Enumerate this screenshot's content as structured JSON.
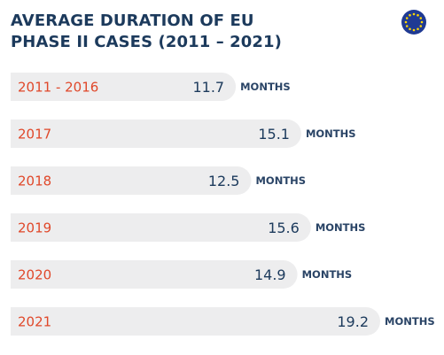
{
  "chart_data": {
    "type": "bar",
    "orientation": "horizontal",
    "title_lines": [
      "AVERAGE DURATION OF EU",
      "PHASE II CASES (2011 – 2021)"
    ],
    "categories": [
      "2011 - 2016",
      "2017",
      "2018",
      "2019",
      "2020",
      "2021"
    ],
    "values": [
      11.7,
      15.1,
      12.5,
      15.6,
      14.9,
      19.2
    ],
    "value_labels": [
      "11.7",
      "15.1",
      "12.5",
      "15.6",
      "14.9",
      "19.2"
    ],
    "unit": "MONTHS",
    "xlim": [
      0,
      19.2
    ],
    "grid": false,
    "legend": "none"
  },
  "icons": {
    "logo": "eu-flag-icon"
  },
  "colors": {
    "title": "#1c3a5c",
    "category_label": "#e0482a",
    "value_label": "#1c3a5c",
    "unit_label": "#2a4466",
    "bar": "#ededee",
    "flag_blue": "#1f3a93",
    "flag_stars": "#ffd700"
  }
}
